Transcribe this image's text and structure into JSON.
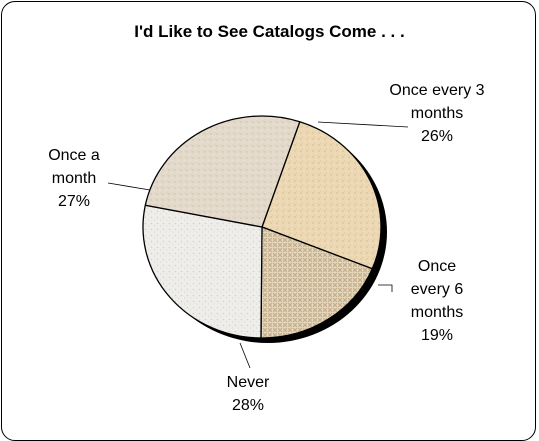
{
  "chart_data": {
    "type": "pie",
    "title": "I'd Like to See Catalogs Come . . .",
    "slices": [
      {
        "label_lines": [
          "Once every 3",
          "months"
        ],
        "percent_label": "26%",
        "value": 26,
        "color": "#ecd8b4"
      },
      {
        "label_lines": [
          "Once",
          "every 6",
          "months"
        ],
        "percent_label": "19%",
        "value": 19,
        "color": "#d8c6a6"
      },
      {
        "label_lines": [
          "Never"
        ],
        "percent_label": "28%",
        "value": 28,
        "color": "#ecebe6"
      },
      {
        "label_lines": [
          "Once a",
          "month"
        ],
        "percent_label": "27%",
        "value": 27,
        "color": "#e2d8c8"
      }
    ],
    "legend": "none",
    "grid": false
  }
}
